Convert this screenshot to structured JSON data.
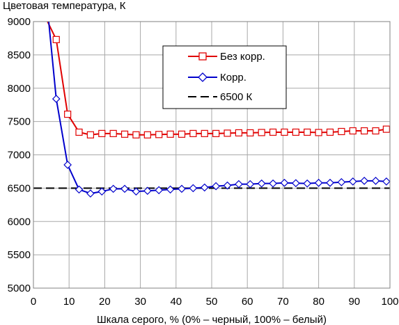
{
  "chart_data": {
    "type": "line",
    "title": "Цветовая температура, К",
    "xlabel": "Шкала серого, % (0% – черный, 100% – белый)",
    "ylabel": "",
    "xlim": [
      0,
      100
    ],
    "ylim": [
      5000,
      9000
    ],
    "x_ticks": [
      0,
      10,
      20,
      30,
      40,
      50,
      60,
      70,
      80,
      90,
      100
    ],
    "y_ticks": [
      5000,
      5500,
      6000,
      6500,
      7000,
      7500,
      8000,
      8500,
      9000
    ],
    "grid": true,
    "legend_position": "top-center-right",
    "series": [
      {
        "name": "Без корр.",
        "color": "#e00000",
        "marker": "square",
        "x": [
          6.4,
          9.6,
          12.8,
          16.0,
          19.2,
          22.4,
          25.6,
          28.8,
          32.0,
          35.2,
          38.4,
          41.6,
          44.8,
          48.0,
          51.2,
          54.4,
          57.6,
          60.8,
          64.0,
          67.2,
          70.4,
          73.6,
          76.8,
          80.0,
          83.2,
          86.4,
          89.6,
          92.8,
          96.0,
          99.0
        ],
        "y": [
          8730,
          7610,
          7340,
          7300,
          7320,
          7320,
          7310,
          7300,
          7300,
          7305,
          7310,
          7310,
          7320,
          7320,
          7320,
          7325,
          7330,
          7330,
          7335,
          7340,
          7340,
          7340,
          7340,
          7335,
          7340,
          7350,
          7360,
          7360,
          7360,
          7385
        ]
      },
      {
        "name": "Корр.",
        "color": "#0000cc",
        "marker": "diamond",
        "x": [
          6.4,
          9.6,
          12.8,
          16.0,
          19.2,
          22.4,
          25.6,
          28.8,
          32.0,
          35.2,
          38.4,
          41.6,
          44.8,
          48.0,
          51.2,
          54.4,
          57.6,
          60.8,
          64.0,
          67.2,
          70.4,
          73.6,
          76.8,
          80.0,
          83.2,
          86.4,
          89.6,
          92.8,
          96.0,
          99.0
        ],
        "y": [
          7840,
          6850,
          6480,
          6420,
          6450,
          6490,
          6490,
          6450,
          6460,
          6470,
          6480,
          6490,
          6500,
          6510,
          6530,
          6540,
          6560,
          6560,
          6570,
          6570,
          6580,
          6575,
          6570,
          6580,
          6580,
          6590,
          6600,
          6610,
          6610,
          6600
        ]
      },
      {
        "name": "6500 К",
        "color": "#000000",
        "style": "dashed",
        "x": [
          0,
          100
        ],
        "y": [
          6500,
          6500
        ]
      }
    ]
  }
}
